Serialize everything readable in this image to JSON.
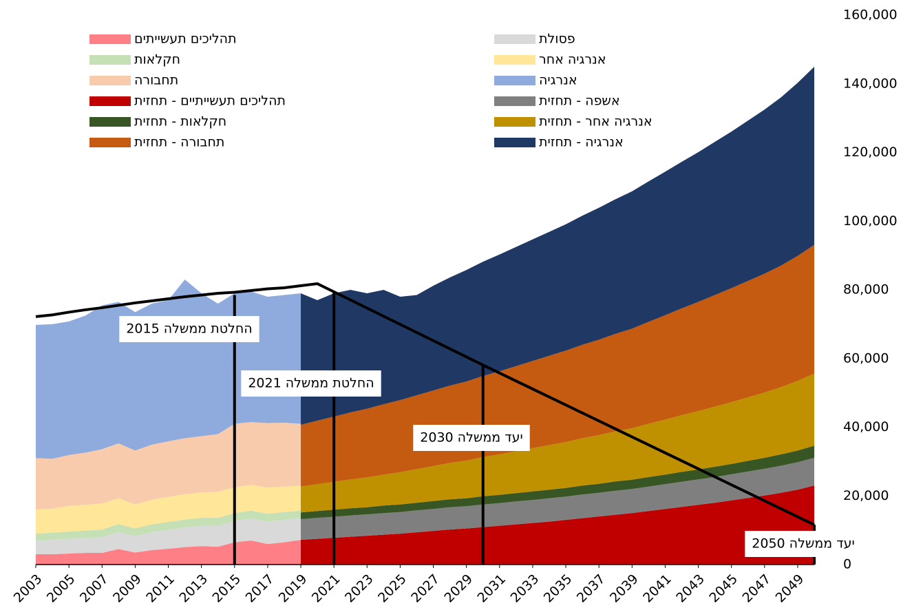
{
  "chart_data": {
    "type": "area",
    "stacked": true,
    "x": [
      2003,
      2004,
      2005,
      2006,
      2007,
      2008,
      2009,
      2010,
      2011,
      2012,
      2013,
      2014,
      2015,
      2016,
      2017,
      2018,
      2019,
      2020,
      2021,
      2022,
      2023,
      2024,
      2025,
      2026,
      2027,
      2028,
      2029,
      2030,
      2031,
      2032,
      2033,
      2034,
      2035,
      2036,
      2037,
      2038,
      2039,
      2040,
      2041,
      2042,
      2043,
      2044,
      2045,
      2046,
      2047,
      2048,
      2049,
      2050
    ],
    "xlim": [
      2003,
      2050
    ],
    "xticks": [
      2003,
      2005,
      2007,
      2009,
      2011,
      2013,
      2015,
      2017,
      2019,
      2021,
      2023,
      2025,
      2027,
      2029,
      2031,
      2033,
      2035,
      2037,
      2039,
      2041,
      2043,
      2045,
      2047,
      2049
    ],
    "ylim": [
      0,
      160000
    ],
    "yticks": [
      0,
      {
        "value": 20000,
        "label": "20,000"
      },
      {
        "value": 40000,
        "label": "40,000"
      },
      {
        "value": 60000,
        "label": "60,000"
      },
      {
        "value": 80000,
        "label": "80,000"
      },
      {
        "value": 100000,
        "label": "100,000"
      },
      {
        "value": 120000,
        "label": "120,000"
      },
      {
        "value": 140000,
        "label": "140,000"
      },
      {
        "value": 160000,
        "label": "160,000"
      }
    ],
    "series": [
      {
        "name": "תהליכים תעשייתים",
        "color": "#ff7f86",
        "values": [
          3000,
          3000,
          3200,
          3400,
          3400,
          4500,
          3500,
          4200,
          4600,
          5100,
          5400,
          5200,
          6500,
          7000,
          6000,
          6500,
          7200,
          null,
          null,
          null,
          null,
          null,
          null,
          null,
          null,
          null,
          null,
          null,
          null,
          null,
          null,
          null,
          null,
          null,
          null,
          null,
          null,
          null,
          null,
          null,
          null,
          null,
          null,
          null,
          null,
          null,
          null,
          null
        ]
      },
      {
        "name": "פסולת",
        "color": "#d9d9d9",
        "values": [
          4000,
          4200,
          4300,
          4400,
          4600,
          5000,
          4800,
          5200,
          5500,
          5700,
          5900,
          6100,
          6200,
          6400,
          6500,
          6500,
          6300,
          null,
          null,
          null,
          null,
          null,
          null,
          null,
          null,
          null,
          null,
          null,
          null,
          null,
          null,
          null,
          null,
          null,
          null,
          null,
          null,
          null,
          null,
          null,
          null,
          null,
          null,
          null,
          null,
          null,
          null,
          null
        ]
      },
      {
        "name": "חקלאות",
        "color": "#c5e0b4",
        "values": [
          2000,
          2100,
          2100,
          2100,
          2200,
          2300,
          2200,
          2300,
          2300,
          2300,
          2300,
          2300,
          2300,
          2300,
          2300,
          2300,
          2200,
          null,
          null,
          null,
          null,
          null,
          null,
          null,
          null,
          null,
          null,
          null,
          null,
          null,
          null,
          null,
          null,
          null,
          null,
          null,
          null,
          null,
          null,
          null,
          null,
          null,
          null,
          null,
          null,
          null,
          null,
          null
        ]
      },
      {
        "name": "אנרגיה אחר",
        "color": "#ffe699",
        "values": [
          7000,
          7000,
          7500,
          7500,
          7600,
          7500,
          7000,
          7200,
          7300,
          7400,
          7400,
          7600,
          7500,
          7500,
          7600,
          7400,
          7300,
          null,
          null,
          null,
          null,
          null,
          null,
          null,
          null,
          null,
          null,
          null,
          null,
          null,
          null,
          null,
          null,
          null,
          null,
          null,
          null,
          null,
          null,
          null,
          null,
          null,
          null,
          null,
          null,
          null,
          null,
          null
        ]
      },
      {
        "name": "תחבורה",
        "color": "#f8cbad",
        "values": [
          15000,
          14500,
          14800,
          15200,
          15800,
          16000,
          15700,
          16000,
          16200,
          16300,
          16400,
          16800,
          18500,
          18300,
          18800,
          18600,
          18000,
          null,
          null,
          null,
          null,
          null,
          null,
          null,
          null,
          null,
          null,
          null,
          null,
          null,
          null,
          null,
          null,
          null,
          null,
          null,
          null,
          null,
          null,
          null,
          null,
          null,
          null,
          null,
          null,
          null,
          null,
          null
        ]
      },
      {
        "name": "אנרגיה",
        "color": "#8faadc",
        "values": [
          38800,
          39200,
          38900,
          39900,
          41900,
          41200,
          40300,
          41100,
          41100,
          46200,
          41600,
          38000,
          38000,
          38000,
          36800,
          37200,
          38000,
          null,
          null,
          null,
          null,
          null,
          null,
          null,
          null,
          null,
          null,
          null,
          null,
          null,
          null,
          null,
          null,
          null,
          null,
          null,
          null,
          null,
          null,
          null,
          null,
          null,
          null,
          null,
          null,
          null,
          null,
          null
        ]
      },
      {
        "name": "תהליכים תעשייתיים - תחזית",
        "color": "#c00000",
        "values": [
          null,
          null,
          null,
          null,
          null,
          null,
          null,
          null,
          null,
          null,
          null,
          null,
          null,
          null,
          null,
          null,
          7200,
          7500,
          7800,
          8100,
          8400,
          8700,
          9000,
          9400,
          9800,
          10200,
          10500,
          10900,
          11300,
          11700,
          12100,
          12500,
          13000,
          13500,
          14000,
          14500,
          15000,
          15600,
          16200,
          16800,
          17400,
          18000,
          18700,
          19400,
          20100,
          20900,
          21800,
          23000
        ]
      },
      {
        "name": "אשפה - תחזית",
        "color": "#7f7f7f",
        "values": [
          null,
          null,
          null,
          null,
          null,
          null,
          null,
          null,
          null,
          null,
          null,
          null,
          null,
          null,
          null,
          null,
          6000,
          6100,
          6100,
          6200,
          6200,
          6300,
          6300,
          6400,
          6400,
          6500,
          6500,
          6600,
          6600,
          6700,
          6700,
          6800,
          6800,
          6900,
          6900,
          7000,
          7000,
          7100,
          7200,
          7300,
          7400,
          7500,
          7600,
          7700,
          7800,
          7900,
          8000,
          8100
        ]
      },
      {
        "name": "חקלאות - תחזית",
        "color": "#375623",
        "values": [
          null,
          null,
          null,
          null,
          null,
          null,
          null,
          null,
          null,
          null,
          null,
          null,
          null,
          null,
          null,
          null,
          2000,
          2000,
          2100,
          2100,
          2100,
          2200,
          2200,
          2200,
          2300,
          2300,
          2300,
          2400,
          2400,
          2400,
          2500,
          2500,
          2500,
          2600,
          2600,
          2700,
          2700,
          2800,
          2800,
          2900,
          2900,
          3000,
          3000,
          3100,
          3200,
          3300,
          3400,
          3500
        ]
      },
      {
        "name": "אנרגיה אחר - תחזית",
        "color": "#bf9000",
        "values": [
          null,
          null,
          null,
          null,
          null,
          null,
          null,
          null,
          null,
          null,
          null,
          null,
          null,
          null,
          null,
          null,
          7500,
          7800,
          8100,
          8400,
          8700,
          9000,
          9400,
          9800,
          10200,
          10600,
          11000,
          11400,
          11800,
          12200,
          12600,
          13000,
          13400,
          13800,
          14200,
          14600,
          15000,
          15500,
          16000,
          16500,
          17000,
          17500,
          18000,
          18500,
          19000,
          19600,
          20300,
          21000
        ]
      },
      {
        "name": "תחבורה - תחזית",
        "color": "#c55a11",
        "values": [
          null,
          null,
          null,
          null,
          null,
          null,
          null,
          null,
          null,
          null,
          null,
          null,
          null,
          null,
          null,
          null,
          18000,
          18500,
          19000,
          19500,
          20000,
          20500,
          21000,
          21500,
          22000,
          22500,
          23000,
          23600,
          24200,
          24800,
          25400,
          26000,
          26600,
          27200,
          27800,
          28400,
          29000,
          29700,
          30400,
          31100,
          31800,
          32500,
          33200,
          33900,
          34600,
          35400,
          36400,
          37500
        ]
      },
      {
        "name": "אנרגיה - תחזית",
        "color": "#203864",
        "values": [
          null,
          null,
          null,
          null,
          null,
          null,
          null,
          null,
          null,
          null,
          null,
          null,
          null,
          null,
          null,
          null,
          38300,
          35100,
          35900,
          35700,
          33600,
          33300,
          30100,
          29200,
          30500,
          31500,
          32500,
          33300,
          34000,
          34700,
          35400,
          36100,
          36800,
          37600,
          38400,
          39200,
          40000,
          40900,
          41800,
          42700,
          43600,
          44600,
          45600,
          46700,
          47800,
          49000,
          50400,
          51900
        ]
      }
    ],
    "trajectory": {
      "color": "#000000",
      "x": [
        2003,
        2004,
        2005,
        2006,
        2007,
        2008,
        2009,
        2010,
        2011,
        2012,
        2013,
        2014,
        2015,
        2016,
        2017,
        2018,
        2019,
        2020,
        2030,
        2050
      ],
      "values": [
        72200,
        72700,
        73500,
        74200,
        74800,
        75500,
        76200,
        76800,
        77400,
        78000,
        78500,
        79000,
        79300,
        79800,
        80300,
        80600,
        81200,
        81800,
        58100,
        11600
      ]
    },
    "annotations": [
      {
        "text": "החלטת ממשלה 2015",
        "x": 2015,
        "value": 78500
      },
      {
        "text": "החלטת ממשלה 2021",
        "x": 2021,
        "value": 79400
      },
      {
        "text": "יעד ממשלה 2030",
        "x": 2030,
        "value": 58100
      },
      {
        "text": "יעד ממשלה 2050",
        "x": 2050,
        "value": 11600
      }
    ]
  }
}
